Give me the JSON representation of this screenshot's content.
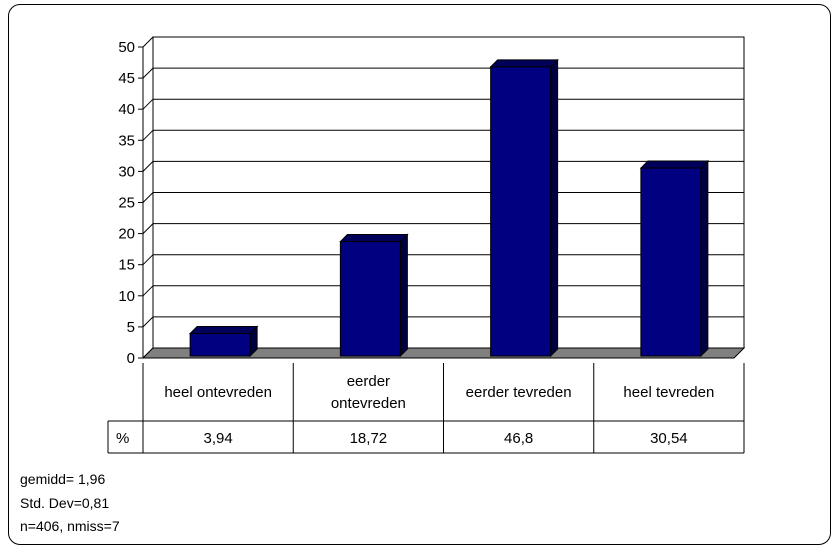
{
  "chart_data": {
    "type": "bar",
    "categories": [
      "heel ontevreden",
      "eerder ontevreden",
      "eerder tevreden",
      "heel tevreden"
    ],
    "category_label_lines": [
      [
        "heel ontevreden"
      ],
      [
        "eerder",
        "ontevreden"
      ],
      [
        "eerder tevreden"
      ],
      [
        "heel tevreden"
      ]
    ],
    "values": [
      3.94,
      18.72,
      46.8,
      30.54
    ],
    "value_labels": [
      "3,94",
      "18,72",
      "46,8",
      "30,54"
    ],
    "table_row_label": "%",
    "yticks": [
      "0",
      "5",
      "10",
      "15",
      "20",
      "25",
      "30",
      "35",
      "40",
      "45",
      "50"
    ],
    "ylim": [
      0,
      50
    ],
    "grid": true,
    "style_3d": true,
    "bar_color": "#000080",
    "bar_top_color": "#00005a",
    "bar_side_color": "#000040",
    "floor_color": "#808080",
    "title": "",
    "xlabel": "",
    "ylabel": ""
  },
  "stats": {
    "mean": "gemidd= 1,96",
    "std": "Std. Dev=0,81",
    "n": "n=406, nmiss=7"
  }
}
